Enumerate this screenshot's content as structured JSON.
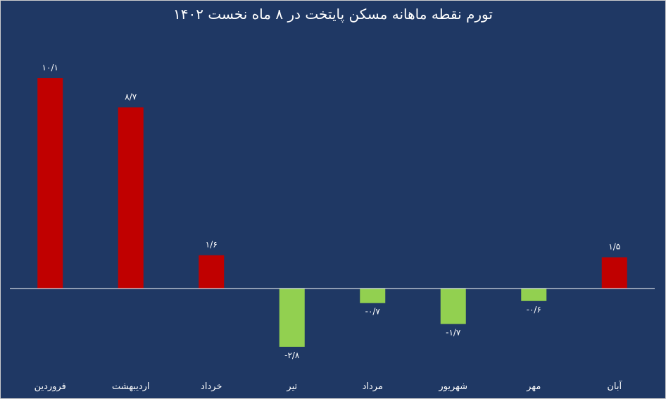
{
  "chart_data": {
    "type": "bar",
    "title": "تورم نقطه ماهانه مسکن پایتخت در ۸ ماه نخست ۱۴۰۲",
    "categories": [
      "فروردین",
      "اردیبهشت",
      "خرداد",
      "تیر",
      "مرداد",
      "شهریور",
      "مهر",
      "آبان"
    ],
    "values": [
      10.1,
      8.7,
      1.6,
      -2.8,
      -0.7,
      -1.7,
      -0.6,
      1.5
    ],
    "data_labels": [
      "۱۰/۱",
      "۸/۷",
      "۱/۶",
      "-۲/۸",
      "-۰/۷",
      "-۱/۷",
      "-۰/۶",
      "۱/۵"
    ],
    "ylim": [
      -3.5,
      11.5
    ],
    "grid": false,
    "legend": "none",
    "colors": {
      "background": "#1f3864",
      "positive": "#c00000",
      "negative": "#92d050",
      "axis": "#ffffff",
      "text": "#ffffff"
    }
  }
}
